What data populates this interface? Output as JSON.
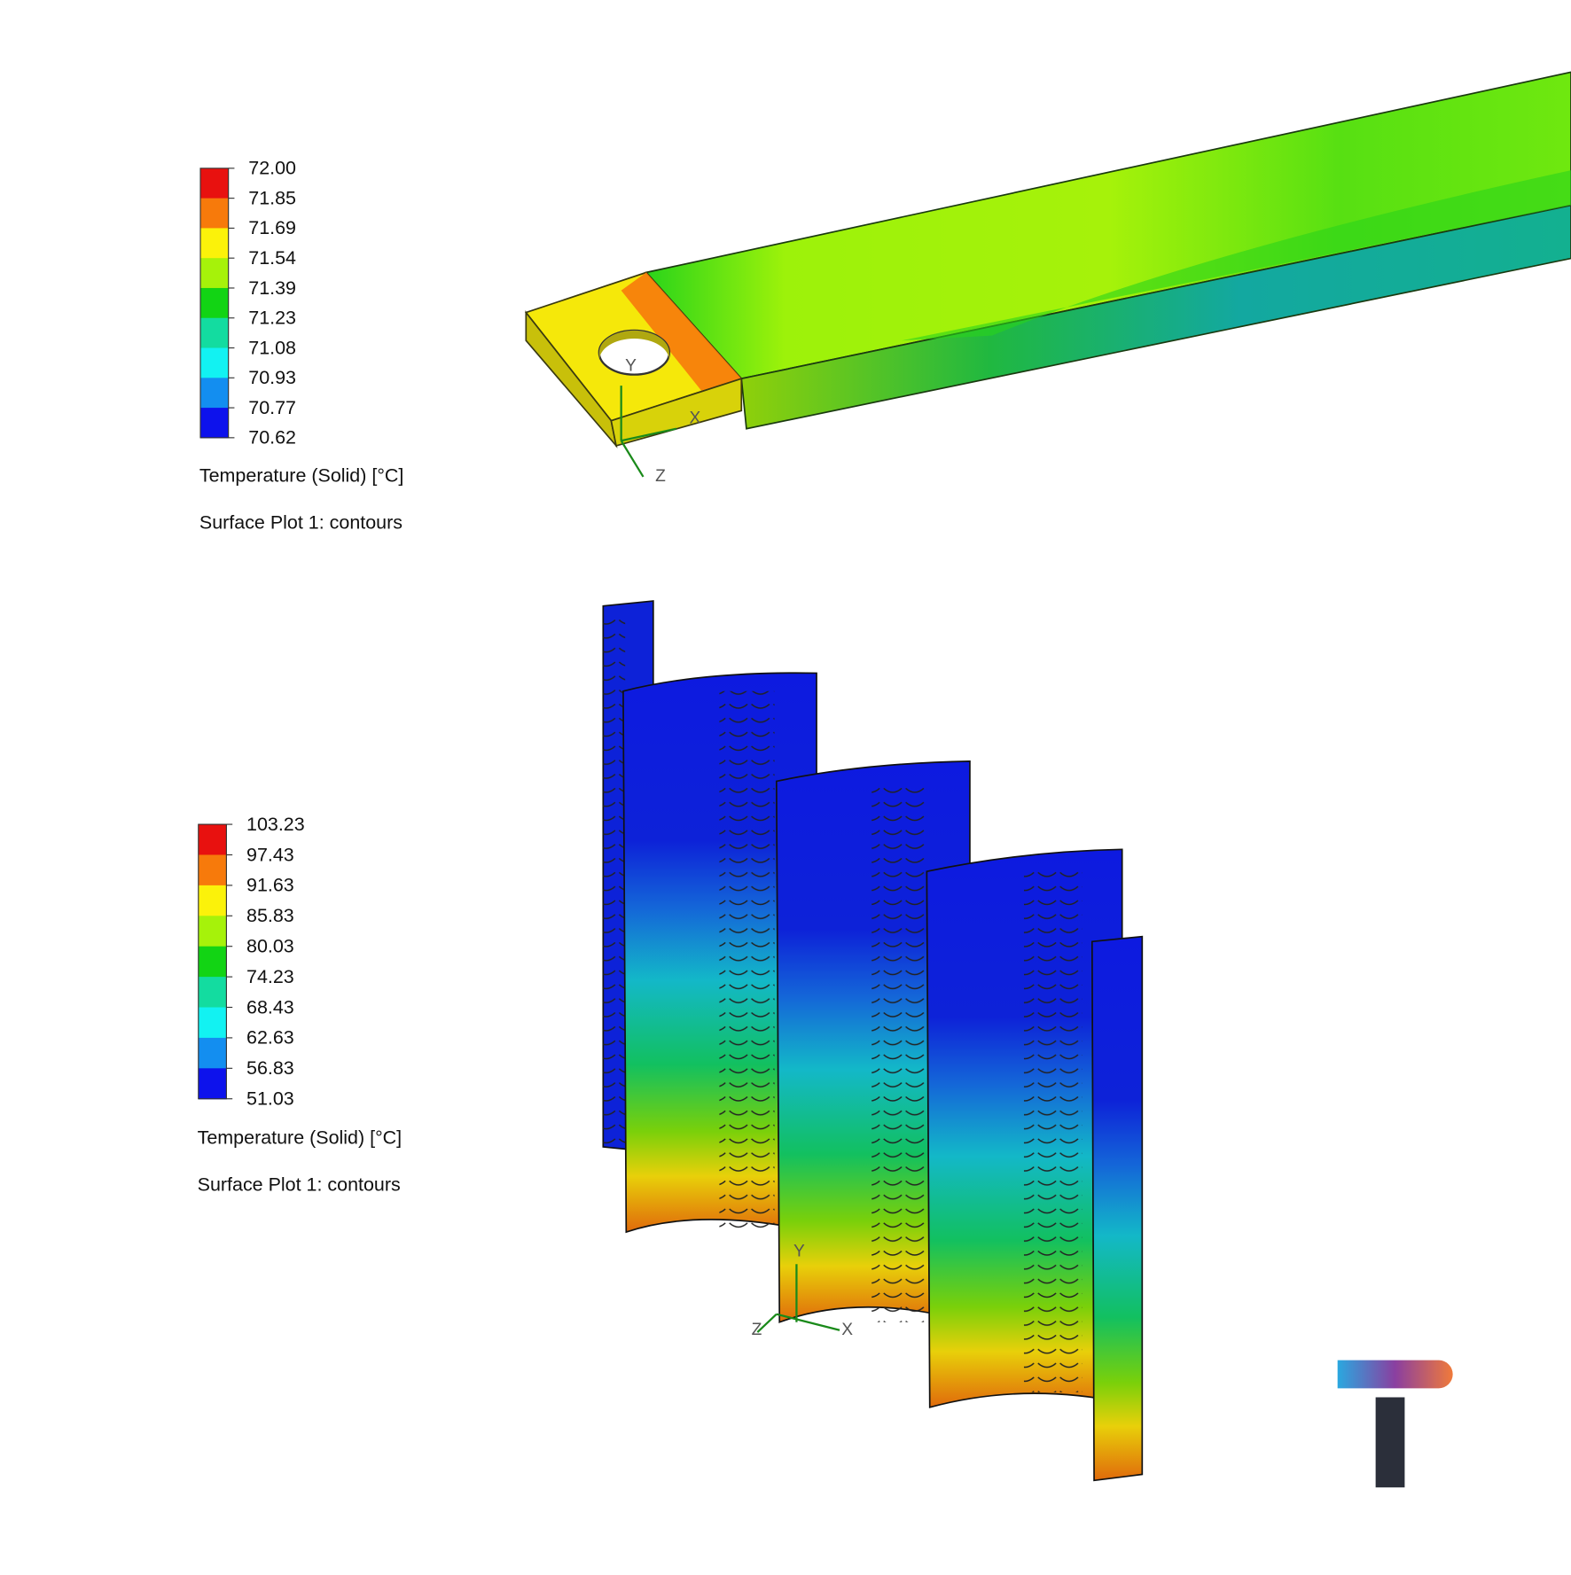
{
  "legends": [
    {
      "labels": [
        "72.00",
        "71.85",
        "71.69",
        "71.54",
        "71.39",
        "71.23",
        "71.08",
        "70.93",
        "70.77",
        "70.62"
      ],
      "band_colors": [
        "#e8110f",
        "#f77a0b",
        "#fbf20a",
        "#a6f20a",
        "#12d414",
        "#13dca0",
        "#12f2f2",
        "#138ef0",
        "#0d12ec"
      ],
      "title": "Temperature (Solid) [°C]",
      "subtitle": "Surface Plot 1: contours"
    },
    {
      "labels": [
        "103.23",
        "97.43",
        "91.63",
        "85.83",
        "80.03",
        "74.23",
        "68.43",
        "62.63",
        "56.83",
        "51.03"
      ],
      "band_colors": [
        "#e8110f",
        "#f77a0b",
        "#fbf20a",
        "#a6f20a",
        "#12d414",
        "#13dca0",
        "#12f2f2",
        "#138ef0",
        "#0d12ec"
      ],
      "title": "Temperature (Solid) [°C]",
      "subtitle": "Surface Plot 1: contours"
    }
  ],
  "triads": [
    {
      "y": "Y",
      "x": "X",
      "z": "Z"
    },
    {
      "y": "Y",
      "x": "X",
      "z": "Z"
    }
  ]
}
